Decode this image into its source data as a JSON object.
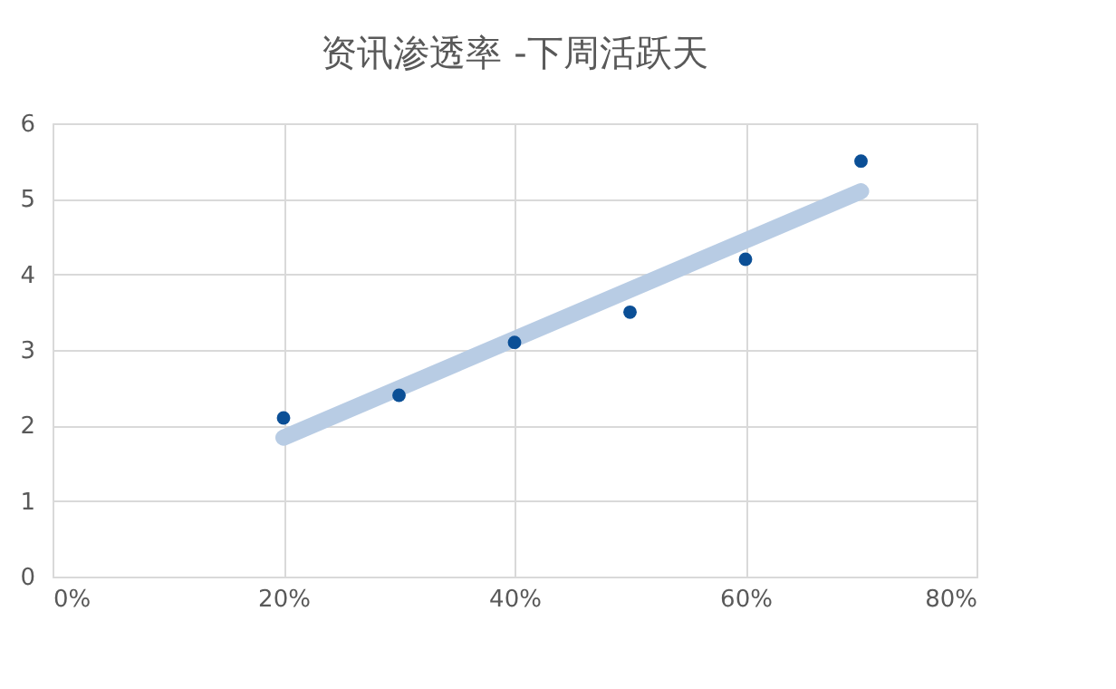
{
  "chart_data": {
    "type": "scatter",
    "title": "资讯渗透率 -下周活跃天",
    "series": [
      {
        "marker": "circle",
        "color": "#0b4f96",
        "x": [
          20,
          30,
          40,
          50,
          60,
          70
        ],
        "values": [
          2.1,
          2.4,
          3.1,
          3.5,
          4.2,
          5.5
        ]
      },
      {
        "type": "line",
        "marker": "none",
        "color": "#b8cce4",
        "x": [
          20,
          70
        ],
        "values": [
          1.84,
          5.1
        ]
      }
    ],
    "xlim": [
      0,
      80
    ],
    "xticks": [
      {
        "value": 0,
        "label": "0%"
      },
      {
        "value": 20,
        "label": "20%"
      },
      {
        "value": 40,
        "label": "40%"
      },
      {
        "value": 60,
        "label": "60%"
      },
      {
        "value": 80,
        "label": "80%"
      }
    ],
    "ylim": [
      0,
      6
    ],
    "yticks": [
      0,
      1,
      2,
      3,
      4,
      5,
      6
    ],
    "grid": true
  }
}
